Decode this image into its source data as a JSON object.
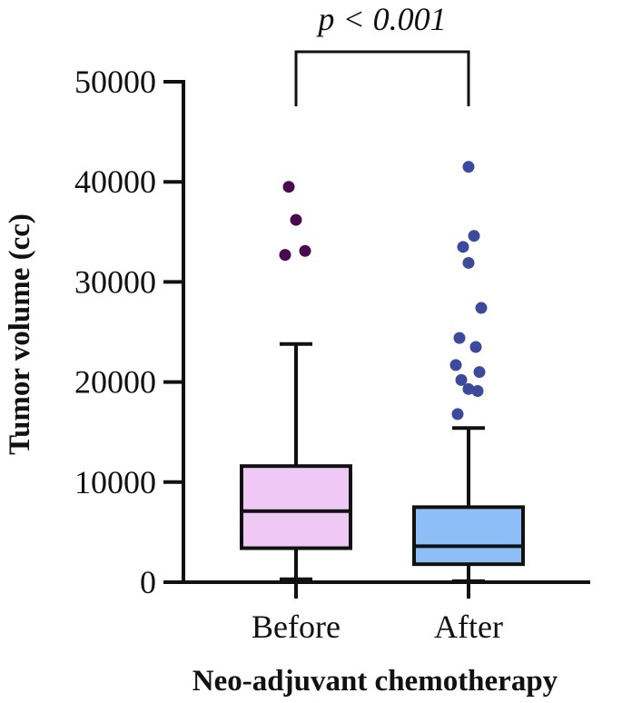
{
  "chart_data": {
    "type": "box",
    "xlabel": "Neo-adjuvant chemotherapy",
    "ylabel": "Tumor volume (cc)",
    "ylim": [
      0,
      50000
    ],
    "yticks": [
      0,
      10000,
      20000,
      30000,
      40000,
      50000
    ],
    "ytick_labels": [
      "0",
      "10000",
      "20000",
      "30000",
      "40000",
      "50000"
    ],
    "grid": false,
    "categories": [
      "Before",
      "After"
    ],
    "boxes": [
      {
        "category": "Before",
        "whisker_low": 300,
        "q1": 3400,
        "median": 7100,
        "q3": 11600,
        "whisker_high": 23800,
        "outliers": [
          32700,
          33100,
          36200,
          39500
        ],
        "fill": "#f0c8f5",
        "outlier_color": "#4a0a4f"
      },
      {
        "category": "After",
        "whisker_low": 100,
        "q1": 1800,
        "median": 3600,
        "q3": 7500,
        "whisker_high": 15400,
        "outliers": [
          16800,
          19100,
          19300,
          20200,
          21000,
          21700,
          23500,
          24400,
          27400,
          31900,
          33500,
          34600,
          41500
        ],
        "fill": "#8dbef8",
        "outlier_color": "#3c4a9c"
      }
    ],
    "annotation": {
      "text": "p < 0.001",
      "between": [
        "Before",
        "After"
      ]
    }
  }
}
